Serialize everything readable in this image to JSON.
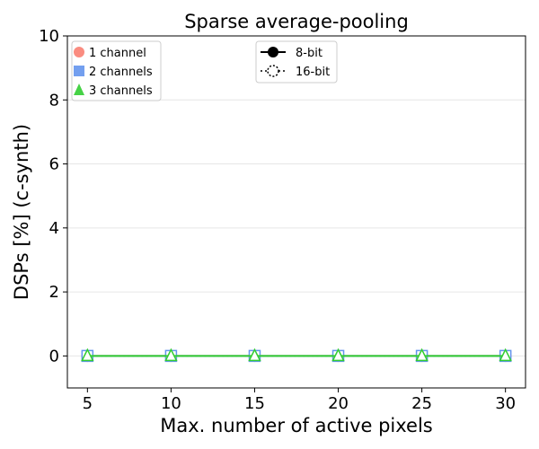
{
  "chart_data": {
    "type": "line",
    "title": "Sparse average-pooling",
    "xlabel": "Max. number of active pixels",
    "ylabel": "DSPs [%] (c-synth)",
    "x": [
      5,
      10,
      15,
      20,
      25,
      30
    ],
    "xlim": [
      3.8,
      31.2
    ],
    "ylim": [
      -1,
      10
    ],
    "yticks": [
      0,
      2,
      4,
      6,
      8,
      10
    ],
    "grid": "horizontal",
    "series": [
      {
        "name": "1 channel",
        "bits": "8-bit",
        "color": "#fa8072",
        "marker": "circle",
        "values": [
          0,
          0,
          0,
          0,
          0,
          0
        ]
      },
      {
        "name": "1 channel",
        "bits": "16-bit",
        "color": "#fa8072",
        "marker": "circle",
        "values": [
          0,
          0,
          0,
          0,
          0,
          0
        ]
      },
      {
        "name": "2 channels",
        "bits": "8-bit",
        "color": "#6495ed",
        "marker": "square",
        "values": [
          0,
          0,
          0,
          0,
          0,
          0
        ]
      },
      {
        "name": "2 channels",
        "bits": "16-bit",
        "color": "#6495ed",
        "marker": "square",
        "values": [
          0,
          0,
          0,
          0,
          0,
          0
        ]
      },
      {
        "name": "3 channels",
        "bits": "8-bit",
        "color": "#32cd32",
        "marker": "triangle",
        "values": [
          0,
          0,
          0,
          0,
          0,
          0
        ]
      },
      {
        "name": "3 channels",
        "bits": "16-bit",
        "color": "#32cd32",
        "marker": "triangle",
        "values": [
          0,
          0,
          0,
          0,
          0,
          0
        ]
      }
    ],
    "legend_channels": {
      "placement": "top-left",
      "entries": [
        {
          "label": "1 channel",
          "marker": "circle",
          "color": "#fa8072"
        },
        {
          "label": "2 channels",
          "marker": "square",
          "color": "#6495ed"
        },
        {
          "label": "3 channels",
          "marker": "triangle",
          "color": "#32cd32"
        }
      ]
    },
    "legend_bits": {
      "placement": "top-center",
      "entries": [
        {
          "label": "8-bit",
          "style": "solid"
        },
        {
          "label": "16-bit",
          "style": "dotted"
        }
      ]
    }
  }
}
